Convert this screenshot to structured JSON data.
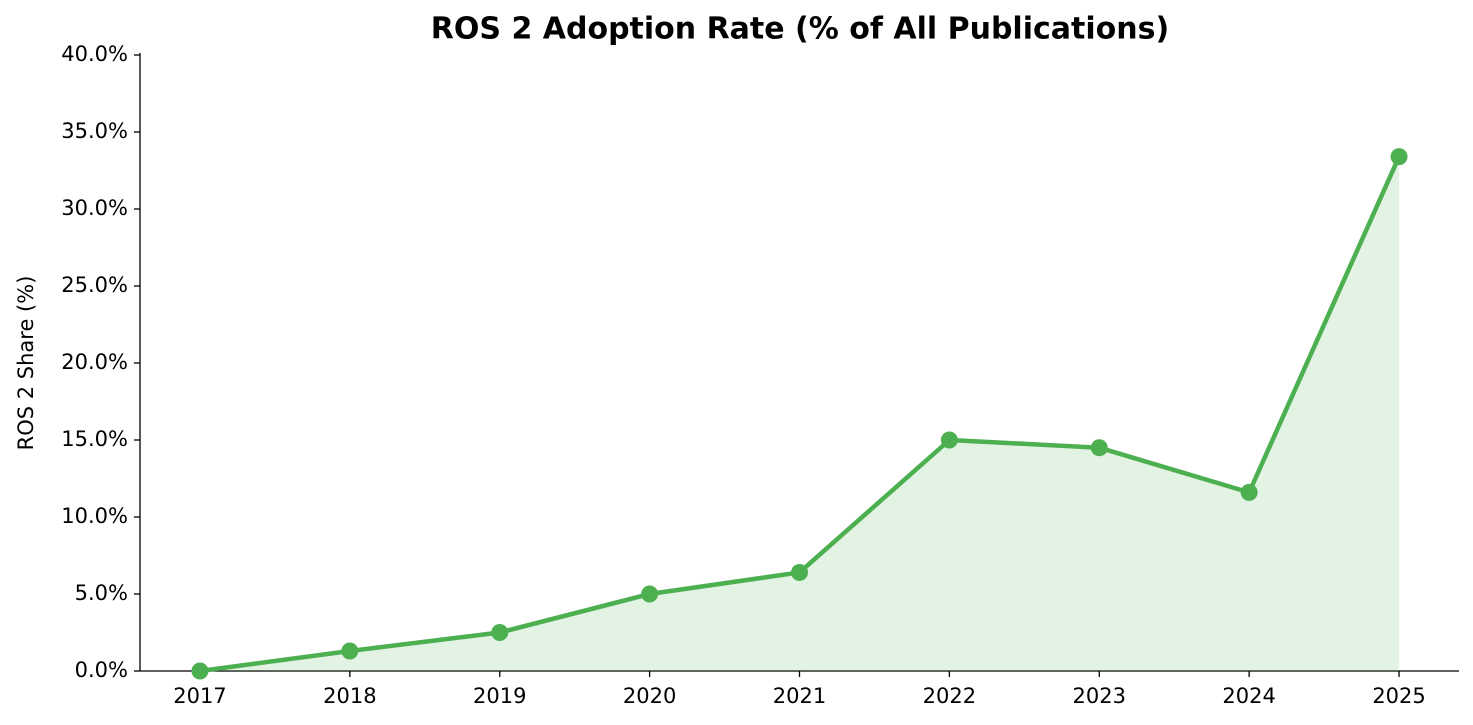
{
  "chart_data": {
    "type": "line",
    "title": "ROS 2 Adoption Rate (% of All Publications)",
    "y_label": "ROS 2 Share (%)",
    "categories": [
      "2017",
      "2018",
      "2019",
      "2020",
      "2021",
      "2022",
      "2023",
      "2024",
      "2025"
    ],
    "values": [
      0,
      1.3,
      2.5,
      5.0,
      6.4,
      15.0,
      14.5,
      11.6,
      33.4
    ],
    "color": "#4caf50",
    "area": true,
    "ylim": [
      0,
      40
    ],
    "yticks": [
      {
        "value": 0,
        "label": "0.0%"
      },
      {
        "value": 5,
        "label": "5.0%"
      },
      {
        "value": 10,
        "label": "10.0%"
      },
      {
        "value": 15,
        "label": "15.0%"
      },
      {
        "value": 20,
        "label": "20.0%"
      },
      {
        "value": 25,
        "label": "25.0%"
      },
      {
        "value": 30,
        "label": "30.0%"
      },
      {
        "value": 35,
        "label": "35.0%"
      },
      {
        "value": 40,
        "label": "40.0%"
      }
    ],
    "grid": false
  }
}
